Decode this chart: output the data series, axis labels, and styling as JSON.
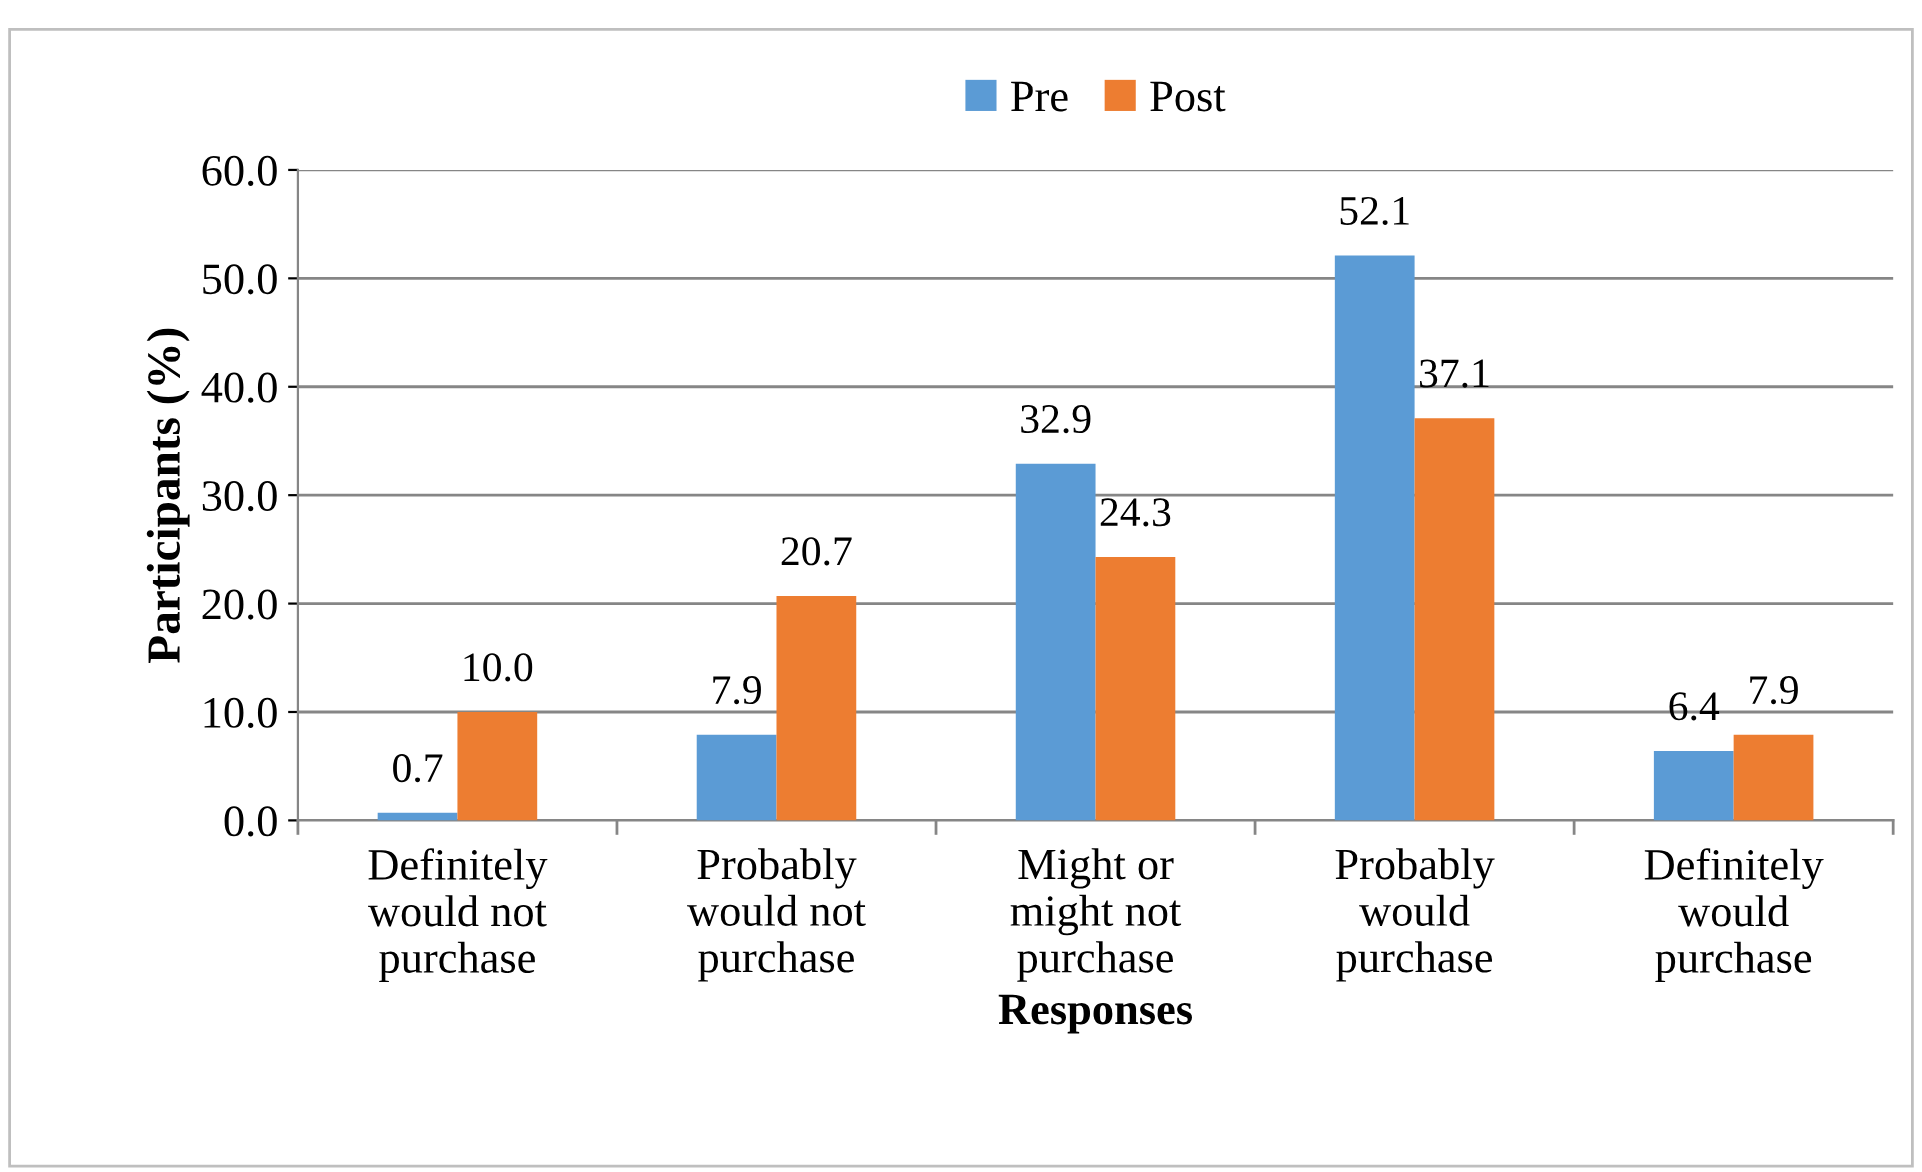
{
  "chart_data": {
    "type": "bar",
    "xlabel": "Responses",
    "ylabel": "Participants (%)",
    "categories": [
      "Definitely\nwould not\npurchase",
      "Probably\nwould not\npurchase",
      "Might or\nmight not\npurchase",
      "Probably\nwould\npurchase",
      "Definitely\nwould\npurchase"
    ],
    "series": [
      {
        "name": "Pre",
        "color": "#5b9bd5",
        "values": [
          0.7,
          7.9,
          32.9,
          52.1,
          6.4
        ]
      },
      {
        "name": "Post",
        "color": "#ed7d31",
        "values": [
          10.0,
          20.7,
          24.3,
          37.1,
          7.9
        ]
      }
    ],
    "value_labels": [
      [
        "0.7",
        "7.9",
        "32.9",
        "52.1",
        "6.4"
      ],
      [
        "10.0",
        "20.7",
        "24.3",
        "37.1",
        "7.9"
      ]
    ],
    "ylim": [
      0,
      60
    ],
    "yticks": [
      {
        "value": 0,
        "label": "0.0"
      },
      {
        "value": 10,
        "label": "10.0"
      },
      {
        "value": 20,
        "label": "20.0"
      },
      {
        "value": 30,
        "label": "30.0"
      },
      {
        "value": 40,
        "label": "40.0"
      },
      {
        "value": 50,
        "label": "50.0"
      },
      {
        "value": 60,
        "label": "60.0"
      }
    ],
    "grid": "y",
    "legend": "top"
  }
}
